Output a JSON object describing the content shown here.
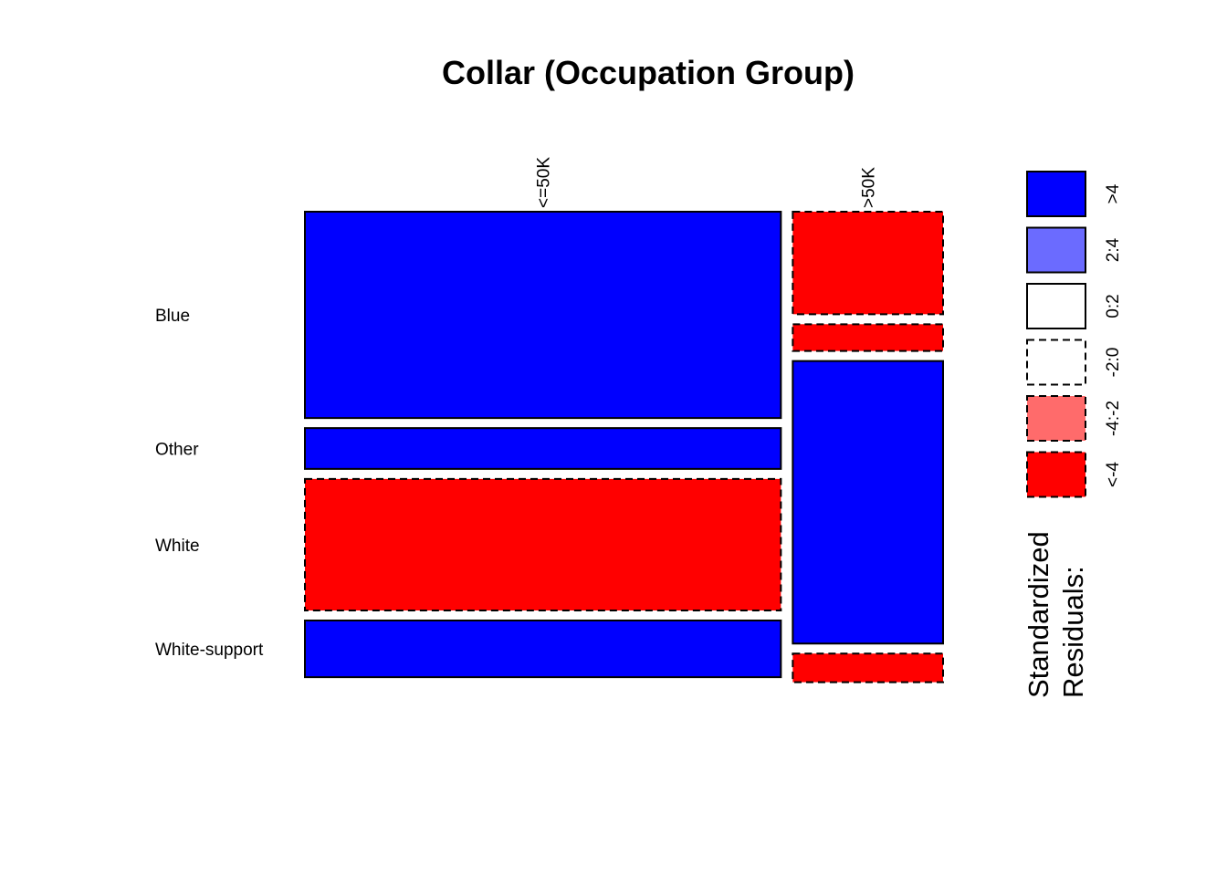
{
  "chart_data": {
    "type": "mosaic",
    "title": "Collar (Occupation Group)",
    "column_variable_levels": [
      "<=50K",
      ">50K"
    ],
    "row_variable_levels": [
      "Blue",
      "Other",
      "White",
      "White-support"
    ],
    "column_proportions": [
      0.76,
      0.24
    ],
    "cells": [
      {
        "column": "<=50K",
        "row": "Blue",
        "proportion": 0.455,
        "residual_class": ">4"
      },
      {
        "column": "<=50K",
        "row": "Other",
        "proportion": 0.09,
        "residual_class": ">4"
      },
      {
        "column": "<=50K",
        "row": "White",
        "proportion": 0.29,
        "residual_class": "<-4"
      },
      {
        "column": "<=50K",
        "row": "White-support",
        "proportion": 0.125,
        "residual_class": ">4"
      },
      {
        "column": ">50K",
        "row": "Blue",
        "proportion": 0.226,
        "residual_class": "<-4"
      },
      {
        "column": ">50K",
        "row": "Other",
        "proportion": 0.059,
        "residual_class": "<-4"
      },
      {
        "column": ">50K",
        "row": "White",
        "proportion": 0.623,
        "residual_class": ">4"
      },
      {
        "column": ">50K",
        "row": "White-support",
        "proportion": 0.063,
        "residual_class": "<-4"
      }
    ],
    "legend": {
      "title_line1": "Standardized",
      "title_line2": "Residuals:",
      "items": [
        {
          "label": ">4",
          "color": "#0000FF",
          "dashed": false
        },
        {
          "label": "2:4",
          "color": "#6B6BFF",
          "dashed": false
        },
        {
          "label": "0:2",
          "color": "#FFFFFF",
          "dashed": false
        },
        {
          "label": "-2:0",
          "color": "#FFFFFF",
          "dashed": true
        },
        {
          "label": "-4:-2",
          "color": "#FF6B6B",
          "dashed": true
        },
        {
          "label": "<-4",
          "color": "#FF0000",
          "dashed": true
        }
      ]
    }
  }
}
